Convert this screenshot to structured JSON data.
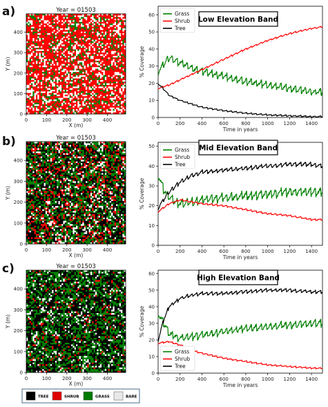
{
  "chart_data": [
    {
      "panel": "a)",
      "kind": "map",
      "title": "Year = 01503",
      "xlabel": "X (m)",
      "ylabel": "Y (m)",
      "xticks": [
        "0",
        "100",
        "200",
        "300",
        "400"
      ],
      "yticks": [
        "0",
        "100",
        "200",
        "300",
        "400"
      ],
      "xlim": [
        0,
        490
      ],
      "ylim": [
        0,
        490
      ],
      "cover_fractions": {
        "TREE": 0.01,
        "SHRUB": 0.55,
        "GRASS": 0.14,
        "BARE": 0.3
      }
    },
    {
      "panel": "a)",
      "type": "line",
      "title": "Low Elevation Band",
      "xlabel": "Time in years",
      "ylabel": "% Coverage",
      "xlim": [
        0,
        1500
      ],
      "ylim": [
        0,
        65
      ],
      "xticks": [
        "0",
        "200",
        "400",
        "600",
        "800",
        "1000",
        "1200",
        "1400"
      ],
      "yticks": [
        "0",
        "10",
        "20",
        "30",
        "40",
        "50",
        "60"
      ],
      "legend": "top-left",
      "series": [
        {
          "name": "Grass",
          "color": "#008000",
          "x": [
            0,
            100,
            200,
            300,
            400,
            600,
            800,
            1000,
            1200,
            1400,
            1500
          ],
          "y": [
            27,
            35,
            32,
            29,
            27,
            24,
            21,
            19,
            17,
            15,
            15
          ]
        },
        {
          "name": "Shrub",
          "color": "#ff0000",
          "x": [
            0,
            100,
            200,
            300,
            400,
            600,
            800,
            1000,
            1200,
            1400,
            1500
          ],
          "y": [
            17,
            19,
            22,
            25,
            28,
            34,
            40,
            45,
            49,
            52,
            53
          ]
        },
        {
          "name": "Tree",
          "color": "#000000",
          "x": [
            0,
            100,
            200,
            300,
            400,
            600,
            800,
            1000,
            1200,
            1400,
            1500
          ],
          "y": [
            20,
            13,
            10,
            8,
            6,
            4,
            2.5,
            1.5,
            1,
            0.5,
            0.5
          ]
        }
      ]
    },
    {
      "panel": "b)",
      "kind": "map",
      "title": "Year = 01503",
      "xlabel": "X (m)",
      "ylabel": "Y (m)",
      "xticks": [
        "0",
        "100",
        "200",
        "300",
        "400"
      ],
      "yticks": [
        "0",
        "100",
        "200",
        "300",
        "400"
      ],
      "xlim": [
        0,
        490
      ],
      "ylim": [
        0,
        490
      ],
      "cover_fractions": {
        "TREE": 0.4,
        "SHRUB": 0.14,
        "GRASS": 0.27,
        "BARE": 0.19
      }
    },
    {
      "panel": "b)",
      "type": "line",
      "title": "Mid Elevation Band",
      "xlabel": "Time in years",
      "ylabel": "% Coverage",
      "xlim": [
        0,
        1500
      ],
      "ylim": [
        0,
        52
      ],
      "xticks": [
        "0",
        "200",
        "400",
        "600",
        "800",
        "1000",
        "1200",
        "1400"
      ],
      "yticks": [
        "0",
        "10",
        "20",
        "30",
        "40",
        "50"
      ],
      "legend": "top-left",
      "series": [
        {
          "name": "Grass",
          "color": "#008000",
          "x": [
            0,
            50,
            100,
            200,
            300,
            400,
            600,
            800,
            1000,
            1200,
            1400,
            1500
          ],
          "y": [
            36,
            28,
            24,
            21,
            22,
            23,
            24,
            25,
            26,
            27,
            27,
            27
          ]
        },
        {
          "name": "Shrub",
          "color": "#ff0000",
          "x": [
            0,
            100,
            200,
            300,
            400,
            600,
            800,
            1000,
            1200,
            1400,
            1500
          ],
          "y": [
            17,
            21,
            23,
            22,
            21,
            20,
            18,
            16,
            15,
            13,
            13
          ]
        },
        {
          "name": "Tree",
          "color": "#000000",
          "x": [
            0,
            100,
            200,
            300,
            400,
            600,
            800,
            1000,
            1200,
            1400,
            1500
          ],
          "y": [
            19,
            27,
            32,
            35,
            37,
            38,
            39,
            40,
            41,
            41,
            40
          ]
        }
      ]
    },
    {
      "panel": "c)",
      "kind": "map",
      "title": "Year = 01503",
      "xlabel": "X (m)",
      "ylabel": "Y (m)",
      "xticks": [
        "0",
        "100",
        "200",
        "300",
        "400"
      ],
      "yticks": [
        "0",
        "100",
        "200",
        "300",
        "400"
      ],
      "xlim": [
        0,
        490
      ],
      "ylim": [
        0,
        490
      ],
      "cover_fractions": {
        "TREE": 0.48,
        "SHRUB": 0.04,
        "GRASS": 0.3,
        "BARE": 0.18
      }
    },
    {
      "panel": "c)",
      "type": "line",
      "title": "High Elevation Band",
      "xlabel": "Time in years",
      "ylabel": "% Coverage",
      "xlim": [
        0,
        1500
      ],
      "ylim": [
        0,
        62
      ],
      "xticks": [
        "0",
        "200",
        "400",
        "600",
        "800",
        "1000",
        "1200",
        "1400"
      ],
      "yticks": [
        "0",
        "10",
        "20",
        "30",
        "40",
        "50",
        "60"
      ],
      "legend": "bottom-left",
      "series": [
        {
          "name": "Grass",
          "color": "#008000",
          "x": [
            0,
            50,
            100,
            200,
            300,
            400,
            600,
            800,
            1000,
            1200,
            1400,
            1500
          ],
          "y": [
            36,
            30,
            24,
            21,
            22,
            23,
            25,
            27,
            28,
            29,
            30,
            30
          ]
        },
        {
          "name": "Shrub",
          "color": "#ff0000",
          "x": [
            0,
            100,
            200,
            300,
            400,
            600,
            800,
            1000,
            1200,
            1400,
            1500
          ],
          "y": [
            18,
            19,
            17,
            14,
            12,
            9,
            7,
            5,
            4,
            3,
            3
          ]
        },
        {
          "name": "Tree",
          "color": "#000000",
          "x": [
            0,
            50,
            100,
            200,
            300,
            400,
            600,
            800,
            1000,
            1200,
            1400,
            1500
          ],
          "y": [
            20,
            32,
            40,
            45,
            47,
            48,
            48,
            49,
            50,
            50,
            49,
            49
          ]
        }
      ]
    }
  ],
  "key": {
    "items": [
      {
        "label": "TREE",
        "color": "#000000"
      },
      {
        "label": "SHRUB",
        "color": "#e00000"
      },
      {
        "label": "GRASS",
        "color": "#007a00"
      },
      {
        "label": "BARE",
        "color": "#e8e8e8"
      }
    ]
  },
  "colors": {
    "tree": "#000000",
    "shrub": "#ff0000",
    "grass": "#008000",
    "bare": "#ffffff"
  }
}
